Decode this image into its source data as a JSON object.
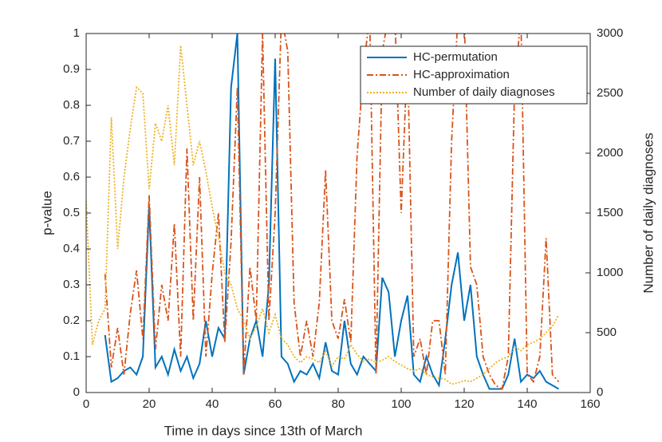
{
  "chart_data": {
    "type": "line",
    "xlabel": "Time in days since 13th of March",
    "ylabel": "p-value",
    "y2label": "Number of daily diagnoses",
    "x": [
      0,
      2,
      4,
      6,
      8,
      10,
      12,
      14,
      16,
      18,
      20,
      22,
      24,
      26,
      28,
      30,
      32,
      34,
      36,
      38,
      40,
      42,
      44,
      46,
      48,
      50,
      52,
      54,
      56,
      58,
      60,
      62,
      64,
      66,
      68,
      70,
      72,
      74,
      76,
      78,
      80,
      82,
      84,
      86,
      88,
      90,
      92,
      94,
      96,
      98,
      100,
      102,
      104,
      106,
      108,
      110,
      112,
      114,
      116,
      118,
      120,
      122,
      124,
      126,
      128,
      130,
      132,
      134,
      136,
      138,
      140,
      142,
      144,
      146,
      148,
      150
    ],
    "series": [
      {
        "name": "HC-permutation",
        "color": "#0072BD",
        "style": "solid",
        "values": [
          null,
          null,
          null,
          0.16,
          0.03,
          0.04,
          0.06,
          0.07,
          0.05,
          0.1,
          0.52,
          0.07,
          0.1,
          0.05,
          0.12,
          0.06,
          0.1,
          0.04,
          0.08,
          0.2,
          0.1,
          0.18,
          0.15,
          0.85,
          1.0,
          0.05,
          0.15,
          0.2,
          0.1,
          0.3,
          0.93,
          0.1,
          0.08,
          0.03,
          0.06,
          0.05,
          0.08,
          0.04,
          0.14,
          0.06,
          0.05,
          0.2,
          0.08,
          0.05,
          0.1,
          0.08,
          0.06,
          0.32,
          0.28,
          0.1,
          0.2,
          0.27,
          0.05,
          0.03,
          0.1,
          0.05,
          0.02,
          0.15,
          0.3,
          0.39,
          0.2,
          0.3,
          0.1,
          0.05,
          0.01,
          0.01,
          0.01,
          0.05,
          0.15,
          0.03,
          0.05,
          0.04,
          0.06,
          0.03,
          0.02,
          0.01
        ]
      },
      {
        "name": "HC-approximation",
        "color": "#D95319",
        "style": "dashdot",
        "values": [
          null,
          null,
          null,
          0.33,
          0.07,
          0.18,
          0.05,
          0.22,
          0.34,
          0.15,
          0.55,
          0.12,
          0.3,
          0.2,
          0.47,
          0.1,
          0.68,
          0.2,
          0.6,
          0.1,
          0.33,
          0.5,
          0.14,
          0.42,
          0.85,
          0.05,
          0.35,
          0.2,
          1.0,
          0.2,
          0.5,
          1.05,
          0.95,
          0.25,
          0.1,
          0.2,
          0.1,
          0.25,
          0.62,
          0.2,
          0.15,
          0.26,
          0.14,
          0.66,
          0.9,
          1.05,
          0.05,
          0.95,
          1.05,
          1.05,
          0.5,
          0.95,
          0.1,
          0.15,
          0.05,
          0.2,
          0.2,
          0.05,
          0.7,
          1.05,
          1.05,
          0.35,
          0.3,
          0.1,
          0.05,
          0.02,
          0.01,
          0.1,
          0.85,
          1.05,
          0.05,
          0.03,
          0.1,
          0.43,
          0.05,
          0.03
        ]
      },
      {
        "name": "Number of daily diagnoses",
        "color": "#EDB120",
        "style": "dotted",
        "axis": "y2",
        "values": [
          1600,
          400,
          600,
          700,
          2300,
          1200,
          1800,
          2200,
          2550,
          2500,
          1700,
          2250,
          2100,
          2400,
          1900,
          2900,
          2400,
          1900,
          2100,
          1850,
          1550,
          1300,
          1000,
          900,
          700,
          600,
          450,
          550,
          700,
          500,
          650,
          450,
          400,
          300,
          250,
          300,
          280,
          250,
          350,
          220,
          300,
          280,
          400,
          320,
          260,
          280,
          250,
          270,
          300,
          260,
          230,
          200,
          180,
          200,
          150,
          130,
          120,
          110,
          70,
          80,
          100,
          90,
          120,
          150,
          200,
          250,
          280,
          300,
          380,
          350,
          400,
          420,
          450,
          500,
          550,
          650
        ]
      }
    ],
    "xlim": [
      0,
      160
    ],
    "xticks": [
      0,
      20,
      40,
      60,
      80,
      100,
      120,
      140,
      160
    ],
    "ylim": [
      0,
      1
    ],
    "yticks": [
      0,
      0.1,
      0.2,
      0.3,
      0.4,
      0.5,
      0.6,
      0.7,
      0.8,
      0.9,
      1
    ],
    "y2lim": [
      0,
      3000
    ],
    "y2ticks": [
      0,
      500,
      1000,
      1500,
      2000,
      2500,
      3000
    ],
    "legend": "upper right"
  }
}
